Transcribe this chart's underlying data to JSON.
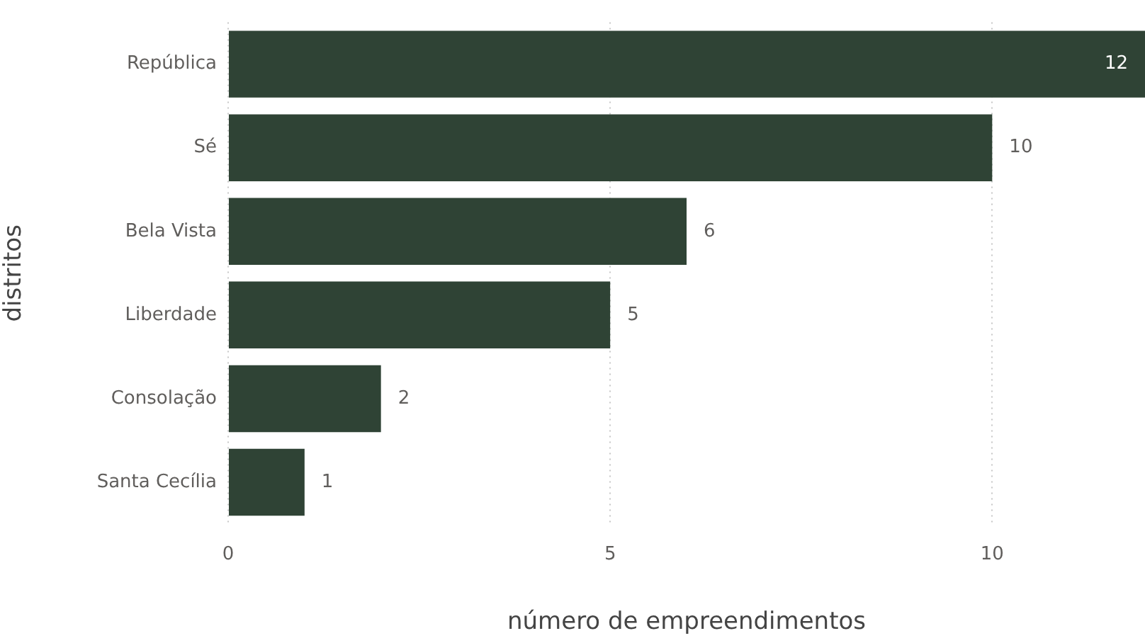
{
  "chart_data": {
    "type": "bar",
    "orientation": "horizontal",
    "xlabel": "número de empreendimentos",
    "ylabel": "distritos",
    "categories": [
      "República",
      "Sé",
      "Bela Vista",
      "Liberdade",
      "Consolação",
      "Santa Cecília"
    ],
    "values": [
      12,
      10,
      6,
      5,
      2,
      1
    ],
    "color": "#2f4335",
    "xlim": [
      0,
      12
    ],
    "xticks": [
      0,
      5,
      10
    ],
    "grid": "x",
    "data_labels": true,
    "legend": false
  }
}
